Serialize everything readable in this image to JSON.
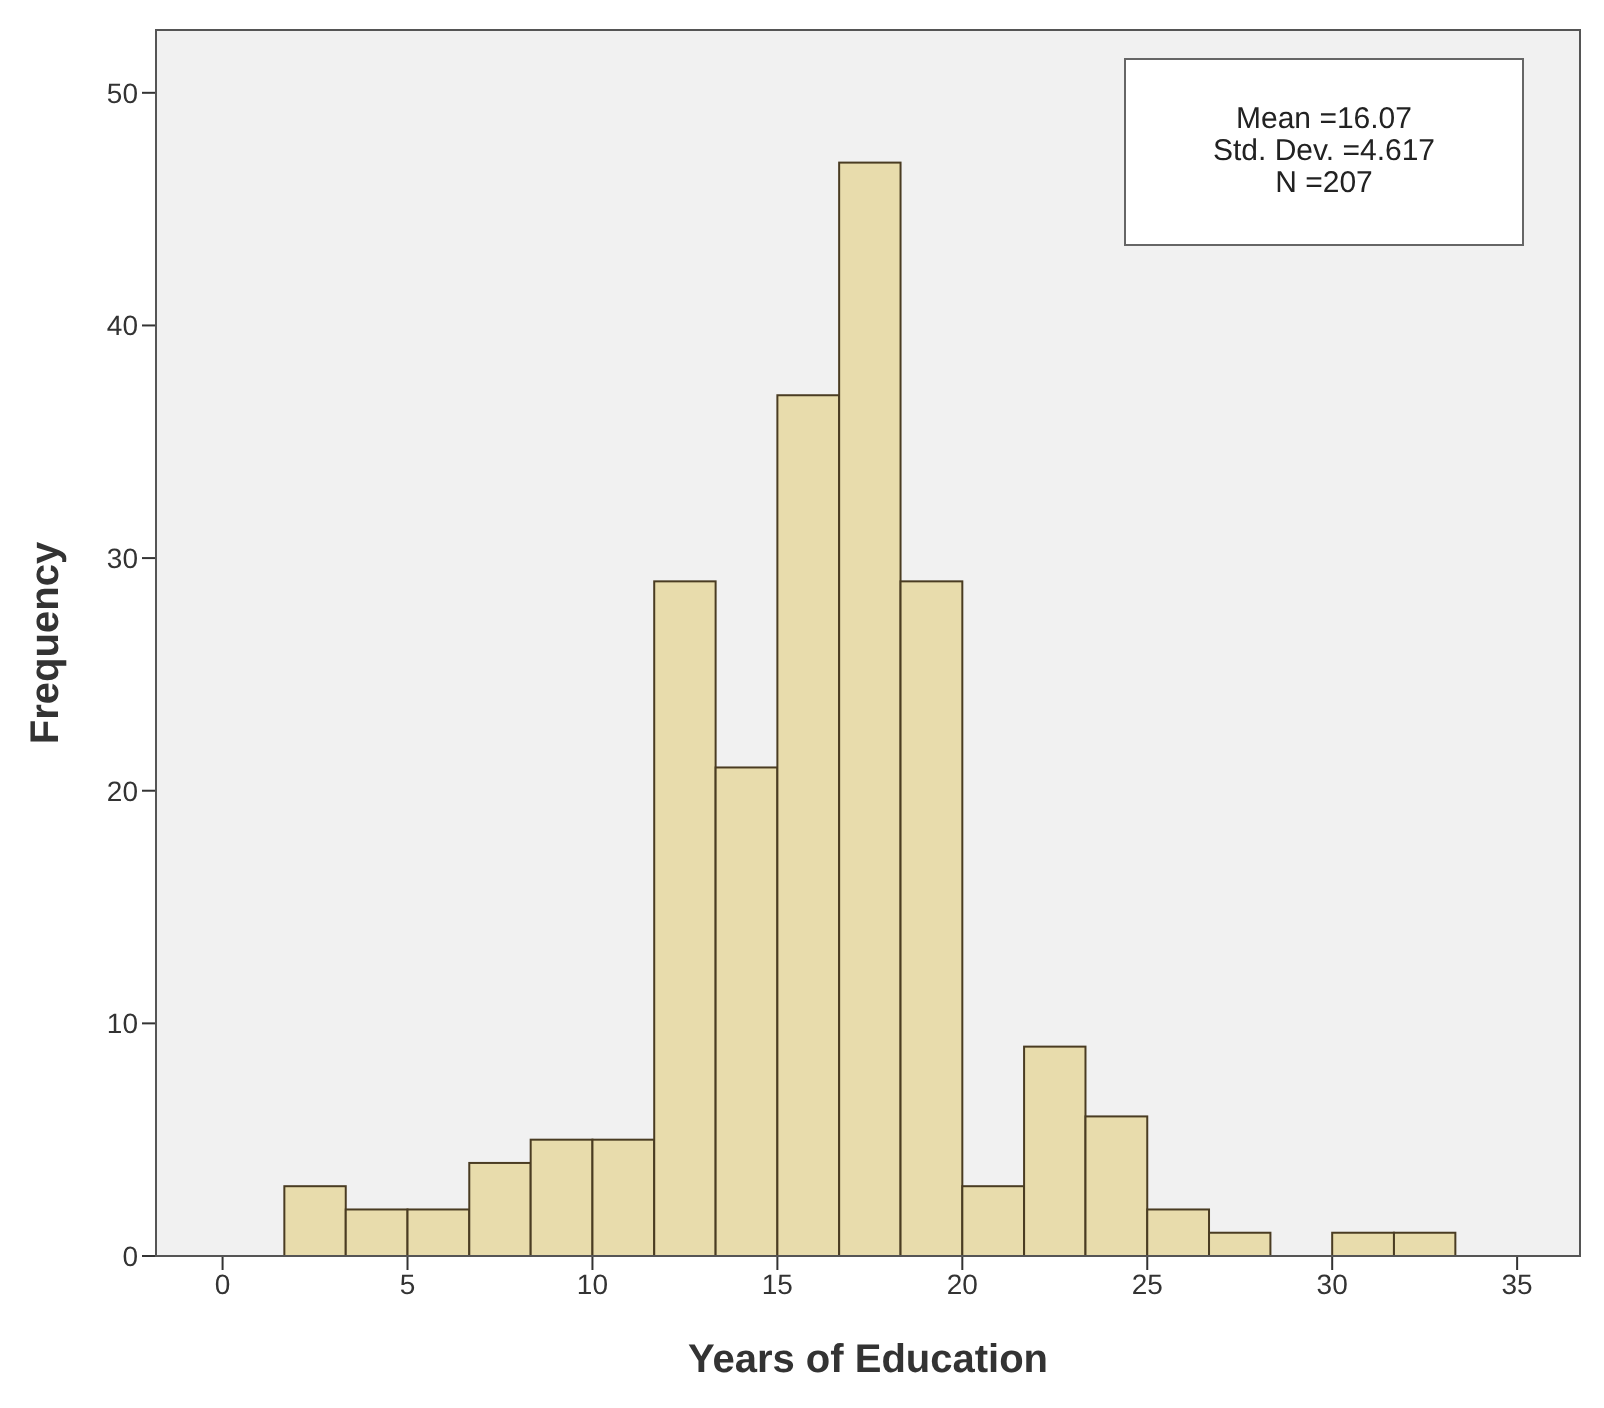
{
  "chart_data": {
    "type": "histogram",
    "xlabel": "Years of Education",
    "ylabel": "Frequency",
    "bins": [
      1.67,
      3.33,
      5,
      6.67,
      8.33,
      10,
      11.67,
      13.33,
      15,
      16.67,
      18.33,
      20,
      21.67,
      23.33,
      25,
      26.67,
      28.33,
      30,
      31.67,
      33.33
    ],
    "values": [
      3,
      2,
      2,
      4,
      5,
      5,
      29,
      21,
      37,
      47,
      29,
      3,
      9,
      6,
      2,
      1,
      0,
      1,
      1
    ],
    "color": "#e8dcac",
    "xlim": [
      -1.8,
      36.7
    ],
    "xticks": [
      0,
      5,
      10,
      15,
      20,
      25,
      30,
      35
    ],
    "ylim": [
      0,
      52.7
    ],
    "yticks": [
      0,
      10,
      20,
      30,
      40,
      50
    ],
    "annotations": [
      "Mean =16.07",
      "Std. Dev. =4.617",
      "N =207"
    ],
    "legend": false,
    "grid": false
  }
}
